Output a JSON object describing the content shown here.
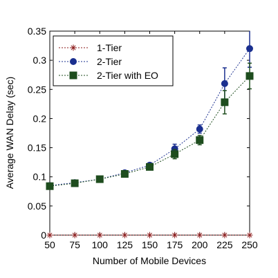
{
  "chart_data": {
    "type": "line",
    "xlabel": "Number of Mobile Devices",
    "ylabel": "Average WAN Delay (sec)",
    "x": [
      50,
      75,
      100,
      125,
      150,
      175,
      200,
      225,
      250
    ],
    "xlim": [
      50,
      250
    ],
    "ylim": [
      0,
      0.35
    ],
    "xticks": [
      "50",
      "75",
      "100",
      "125",
      "150",
      "175",
      "200",
      "225",
      "250"
    ],
    "yticks": [
      "0",
      "0.05",
      "0.1",
      "0.15",
      "0.2",
      "0.25",
      "0.3",
      "0.35"
    ],
    "ytick_values": [
      0,
      0.05,
      0.1,
      0.15,
      0.2,
      0.25,
      0.3,
      0.35
    ],
    "grid": false,
    "legend_position": "top-left",
    "series": [
      {
        "name": "1-Tier",
        "color": "#8b1a1a",
        "marker": "asterisk",
        "values": [
          0,
          0,
          0,
          0,
          0,
          0,
          0,
          0,
          0
        ],
        "errors": [
          0,
          0,
          0,
          0,
          0,
          0,
          0,
          0,
          0
        ]
      },
      {
        "name": "2-Tier",
        "color": "#1a2f8f",
        "marker": "circle",
        "values": [
          0.085,
          0.09,
          0.096,
          0.107,
          0.12,
          0.148,
          0.182,
          0.26,
          0.32
        ],
        "errors": [
          0.002,
          0.002,
          0.002,
          0.003,
          0.004,
          0.008,
          0.007,
          0.027,
          0.032
        ]
      },
      {
        "name": "2-Tier with EO",
        "color": "#1e4d1e",
        "marker": "square",
        "values": [
          0.084,
          0.089,
          0.096,
          0.105,
          0.117,
          0.139,
          0.163,
          0.228,
          0.273
        ],
        "errors": [
          0.002,
          0.002,
          0.002,
          0.003,
          0.004,
          0.008,
          0.008,
          0.02,
          0.022
        ]
      }
    ]
  }
}
